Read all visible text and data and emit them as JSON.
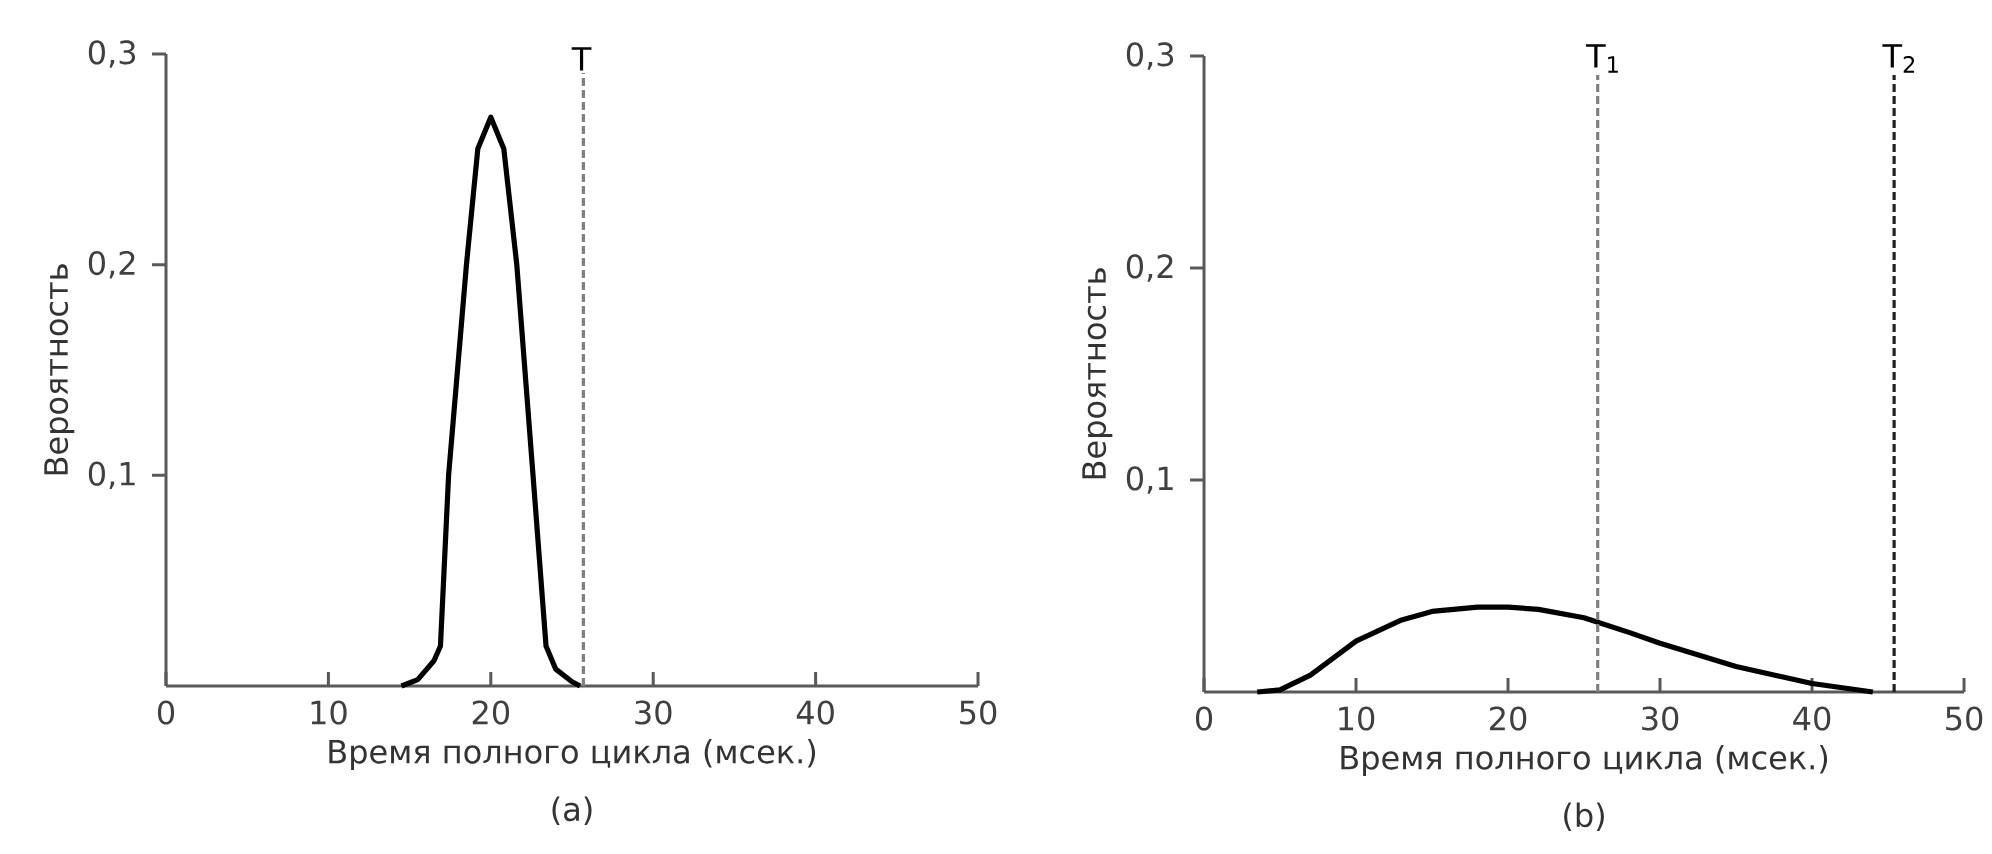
{
  "chart_data": [
    {
      "type": "line",
      "xlabel": "Время полного цикла (мсек.)",
      "ylabel": "Вероятность",
      "annotations": [
        "(a)"
      ],
      "x": [
        14.5,
        15.5,
        16.5,
        16.9,
        17.4,
        18.5,
        19.2,
        20,
        20.8,
        21.6,
        22.6,
        23.4,
        24,
        25,
        25.5
      ],
      "values": [
        0,
        0.003,
        0.012,
        0.019,
        0.1,
        0.2,
        0.255,
        0.27,
        0.255,
        0.2,
        0.1,
        0.019,
        0.008,
        0.002,
        0
      ],
      "color": "#000000",
      "xlim": [
        0,
        50
      ],
      "ylim": [
        0,
        0.3
      ],
      "xticks": [
        0,
        10,
        20,
        30,
        40,
        50
      ],
      "yticks": [
        {
          "value": 0.1,
          "label": "0,1"
        },
        {
          "value": 0.2,
          "label": "0,2"
        },
        {
          "value": 0.3,
          "label": "0,3"
        }
      ],
      "ref_lines": [
        {
          "axis": "x",
          "value": 25.7,
          "label": "T",
          "color": "#808080",
          "line_style": "dashed"
        }
      ]
    },
    {
      "type": "line",
      "xlabel": "Время полного цикла (мсек.)",
      "ylabel": "Вероятность",
      "annotations": [
        "(b)"
      ],
      "x": [
        3.5,
        5,
        7,
        10,
        13,
        15,
        18,
        20,
        22,
        25,
        28,
        30,
        35,
        40,
        44
      ],
      "values": [
        0,
        0.001,
        0.008,
        0.024,
        0.034,
        0.038,
        0.04,
        0.04,
        0.039,
        0.035,
        0.028,
        0.023,
        0.012,
        0.004,
        0
      ],
      "color": "#000000",
      "xlim": [
        0,
        50
      ],
      "ylim": [
        0,
        0.3
      ],
      "xticks": [
        0,
        10,
        20,
        30,
        40,
        50
      ],
      "yticks": [
        {
          "value": 0.1,
          "label": "0,1"
        },
        {
          "value": 0.2,
          "label": "0,2"
        },
        {
          "value": 0.3,
          "label": "0,3"
        }
      ],
      "ref_lines": [
        {
          "axis": "x",
          "value": 25.9,
          "label": "T$_{1}$",
          "color": "#808080",
          "line_style": "dashed"
        },
        {
          "axis": "x",
          "value": 45.4,
          "label": "T$_{2}$",
          "color": "#202020",
          "line_style": "dashed"
        }
      ]
    }
  ]
}
